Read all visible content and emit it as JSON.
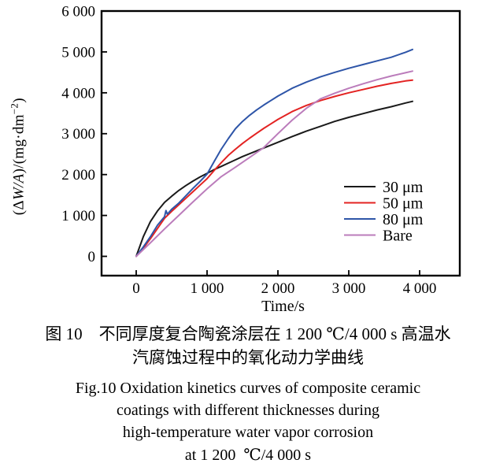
{
  "figure": {
    "ylabel_parts": {
      "p1": "(Δ",
      "p2": "W/A",
      "p3": ")/(mg·dm",
      "sup": "−2",
      "p4": ")"
    },
    "captions": {
      "zh": [
        "图 10　不同厚度复合陶瓷涂层在 1 200 ℃/4 000 s 高温水",
        "汽腐蚀过程中的氧化动力学曲线"
      ],
      "en": [
        "Fig.10 Oxidation kinetics curves of composite ceramic",
        "coatings with different thicknesses during",
        "high-temperature water vapor corrosion",
        "at 1 200  ℃/4 000 s"
      ]
    }
  },
  "chart_data": {
    "type": "line",
    "title": "",
    "xlabel": "Time/s",
    "ylabel": "(ΔW/A)/(mg·dm⁻²)",
    "xlim": [
      0,
      4000
    ],
    "ylim": [
      0,
      6000
    ],
    "grid": false,
    "x_ticks": {
      "values": [
        0,
        1000,
        2000,
        3000,
        4000
      ],
      "labels": [
        "0",
        "1 000",
        "2 000",
        "3 000",
        "4 000"
      ]
    },
    "y_ticks": {
      "values": [
        0,
        1000,
        2000,
        3000,
        4000,
        5000,
        6000
      ],
      "labels": [
        "0",
        "1 000",
        "2 000",
        "3 000",
        "4 000",
        "5 000",
        "6 000"
      ]
    },
    "legend": {
      "position": "right-middle",
      "entries": [
        "30 μm",
        "50 μm",
        "80 μm",
        "Bare"
      ]
    },
    "series": [
      {
        "name": "30 μm",
        "color": "#1a1a1a",
        "points": [
          [
            0,
            0
          ],
          [
            100,
            480
          ],
          [
            200,
            850
          ],
          [
            300,
            1110
          ],
          [
            400,
            1320
          ],
          [
            500,
            1470
          ],
          [
            600,
            1610
          ],
          [
            700,
            1730
          ],
          [
            800,
            1840
          ],
          [
            900,
            1940
          ],
          [
            1000,
            2030
          ],
          [
            1100,
            2120
          ],
          [
            1200,
            2200
          ],
          [
            1300,
            2280
          ],
          [
            1400,
            2360
          ],
          [
            1500,
            2440
          ],
          [
            1600,
            2510
          ],
          [
            1700,
            2580
          ],
          [
            1800,
            2650
          ],
          [
            1900,
            2720
          ],
          [
            2000,
            2790
          ],
          [
            2200,
            2930
          ],
          [
            2400,
            3060
          ],
          [
            2600,
            3180
          ],
          [
            2800,
            3300
          ],
          [
            3000,
            3400
          ],
          [
            3200,
            3490
          ],
          [
            3400,
            3580
          ],
          [
            3600,
            3660
          ],
          [
            3800,
            3750
          ],
          [
            3900,
            3790
          ]
        ]
      },
      {
        "name": "50 μm",
        "color": "#e32322",
        "points": [
          [
            0,
            0
          ],
          [
            100,
            200
          ],
          [
            200,
            430
          ],
          [
            300,
            680
          ],
          [
            400,
            930
          ],
          [
            500,
            1100
          ],
          [
            600,
            1260
          ],
          [
            700,
            1420
          ],
          [
            800,
            1580
          ],
          [
            900,
            1740
          ],
          [
            1000,
            1900
          ],
          [
            1100,
            2100
          ],
          [
            1200,
            2290
          ],
          [
            1300,
            2470
          ],
          [
            1400,
            2620
          ],
          [
            1500,
            2760
          ],
          [
            1600,
            2890
          ],
          [
            1700,
            3010
          ],
          [
            1800,
            3130
          ],
          [
            1900,
            3240
          ],
          [
            2000,
            3350
          ],
          [
            2200,
            3540
          ],
          [
            2400,
            3690
          ],
          [
            2600,
            3810
          ],
          [
            2800,
            3910
          ],
          [
            3000,
            4000
          ],
          [
            3200,
            4080
          ],
          [
            3400,
            4160
          ],
          [
            3600,
            4230
          ],
          [
            3800,
            4290
          ],
          [
            3900,
            4310
          ]
        ]
      },
      {
        "name": "80 μm",
        "color": "#2e55a8",
        "points": [
          [
            0,
            0
          ],
          [
            100,
            230
          ],
          [
            200,
            480
          ],
          [
            300,
            760
          ],
          [
            400,
            970
          ],
          [
            420,
            1120
          ],
          [
            440,
            1030
          ],
          [
            500,
            1150
          ],
          [
            600,
            1300
          ],
          [
            700,
            1480
          ],
          [
            800,
            1660
          ],
          [
            900,
            1830
          ],
          [
            1000,
            2010
          ],
          [
            1100,
            2320
          ],
          [
            1200,
            2620
          ],
          [
            1300,
            2880
          ],
          [
            1400,
            3120
          ],
          [
            1500,
            3300
          ],
          [
            1600,
            3450
          ],
          [
            1700,
            3580
          ],
          [
            1800,
            3700
          ],
          [
            1900,
            3810
          ],
          [
            2000,
            3920
          ],
          [
            2200,
            4110
          ],
          [
            2400,
            4260
          ],
          [
            2600,
            4390
          ],
          [
            2800,
            4500
          ],
          [
            3000,
            4600
          ],
          [
            3200,
            4690
          ],
          [
            3400,
            4780
          ],
          [
            3600,
            4870
          ],
          [
            3800,
            4990
          ],
          [
            3900,
            5060
          ]
        ]
      },
      {
        "name": "Bare",
        "color": "#bb7cbb",
        "points": [
          [
            0,
            0
          ],
          [
            200,
            330
          ],
          [
            400,
            670
          ],
          [
            600,
            1000
          ],
          [
            800,
            1330
          ],
          [
            1000,
            1650
          ],
          [
            1200,
            1950
          ],
          [
            1400,
            2180
          ],
          [
            1600,
            2420
          ],
          [
            1800,
            2660
          ],
          [
            2000,
            3000
          ],
          [
            2200,
            3330
          ],
          [
            2400,
            3620
          ],
          [
            2600,
            3850
          ],
          [
            2800,
            3990
          ],
          [
            3000,
            4110
          ],
          [
            3200,
            4220
          ],
          [
            3400,
            4320
          ],
          [
            3600,
            4410
          ],
          [
            3800,
            4490
          ],
          [
            3900,
            4530
          ]
        ]
      }
    ]
  }
}
